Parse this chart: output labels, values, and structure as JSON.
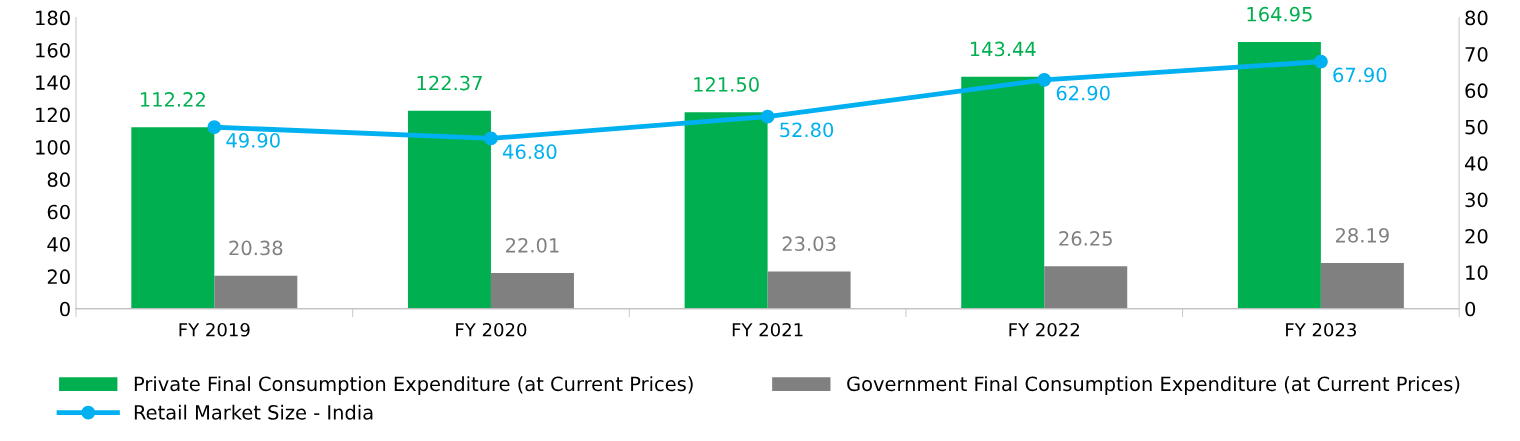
{
  "chart_data": {
    "type": "bar",
    "categories": [
      "FY 2019",
      "FY 2020",
      "FY 2021",
      "FY 2022",
      "FY 2023"
    ],
    "series": [
      {
        "name": "Private Final Consumption Expenditure (at Current Prices)",
        "color": "#00b050",
        "values": [
          112.22,
          122.37,
          121.5,
          143.44,
          164.95
        ],
        "value_labels": [
          "112.22",
          "122.37",
          "121.50",
          "143.44",
          "164.95"
        ]
      },
      {
        "name": "Government Final Consumption Expenditure (at Current Prices)",
        "color": "#808080",
        "values": [
          20.38,
          22.01,
          23.03,
          26.25,
          28.19
        ],
        "value_labels": [
          "20.38",
          "22.01",
          "23.03",
          "26.25",
          "28.19"
        ]
      },
      {
        "name": "Retail Market Size - India",
        "type": "line",
        "axis": "y2",
        "color": "#00b0f0",
        "marker": "circle",
        "values": [
          49.9,
          46.8,
          52.8,
          62.9,
          67.9
        ],
        "value_labels": [
          "49.90",
          "46.80",
          "52.80",
          "62.90",
          "67.90"
        ]
      }
    ],
    "ylim": [
      0,
      180
    ],
    "yticks": [
      0,
      20,
      40,
      60,
      80,
      100,
      120,
      140,
      160,
      180
    ],
    "y2lim": [
      0,
      80
    ],
    "y2ticks": [
      0,
      10,
      20,
      30,
      40,
      50,
      60,
      70,
      80
    ],
    "grid": false,
    "legend": "bottom"
  }
}
